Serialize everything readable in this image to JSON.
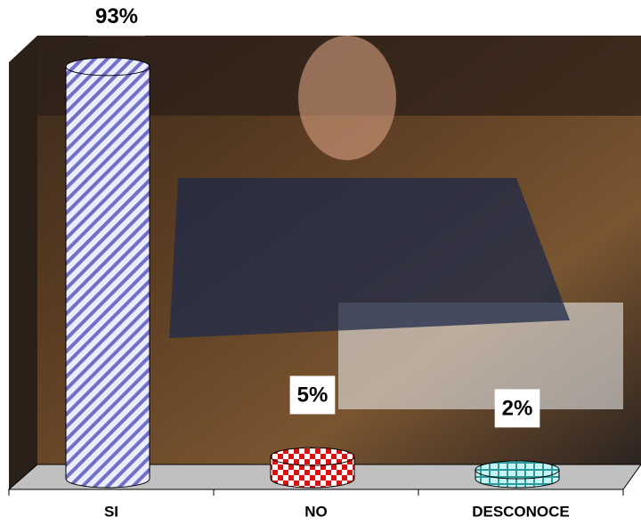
{
  "chart_data": {
    "type": "bar",
    "categories": [
      "SI",
      "NO",
      "DESCONOCE"
    ],
    "values": [
      93,
      5,
      2
    ],
    "value_labels": [
      "93%",
      "5%",
      "2%"
    ],
    "colors": [
      "#c8c8f0",
      "#e01010",
      "#a0e0e0"
    ]
  }
}
